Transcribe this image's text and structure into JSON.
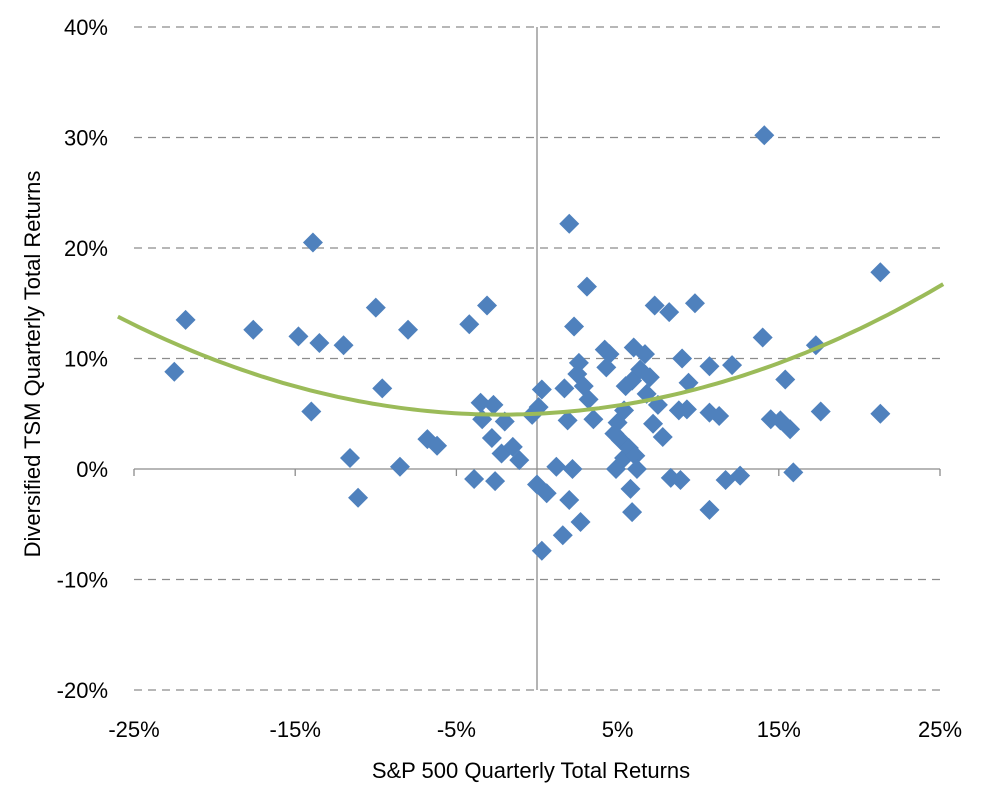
{
  "chart_data": {
    "type": "scatter",
    "xlabel": "S&P 500 Quarterly Total Returns",
    "ylabel": "Diversified TSM Quarterly Total Returns",
    "xlim": [
      -25,
      25
    ],
    "ylim": [
      -20,
      40
    ],
    "x_ticks": [
      "-25%",
      "-15%",
      "-5%",
      "5%",
      "15%",
      "25%"
    ],
    "x_tick_values": [
      -25,
      -15,
      -5,
      5,
      15,
      25
    ],
    "y_ticks": [
      "-20%",
      "-10%",
      "0%",
      "10%",
      "20%",
      "30%",
      "40%"
    ],
    "y_tick_values": [
      -20,
      -10,
      0,
      10,
      20,
      30,
      40
    ],
    "grid": "horizontal-dashed",
    "marker_color": "#4F81BD",
    "trend_color": "#9BBB59",
    "trendline": {
      "type": "polynomial",
      "coefficients": [
        5.0,
        0.07,
        0.0157
      ]
    },
    "points": [
      [
        -22.5,
        8.8
      ],
      [
        -21.8,
        13.5
      ],
      [
        -17.6,
        12.6
      ],
      [
        -14.8,
        12.0
      ],
      [
        -13.9,
        20.5
      ],
      [
        -14.0,
        5.2
      ],
      [
        -13.5,
        11.4
      ],
      [
        -12.0,
        11.2
      ],
      [
        -11.6,
        1.0
      ],
      [
        -11.1,
        -2.6
      ],
      [
        -10.0,
        14.6
      ],
      [
        -9.6,
        7.3
      ],
      [
        -8.5,
        0.2
      ],
      [
        -8.0,
        12.6
      ],
      [
        -6.8,
        2.7
      ],
      [
        -6.2,
        2.1
      ],
      [
        -4.2,
        13.1
      ],
      [
        -3.9,
        -0.9
      ],
      [
        -3.5,
        6.0
      ],
      [
        -3.4,
        4.5
      ],
      [
        -3.1,
        14.8
      ],
      [
        -2.8,
        2.8
      ],
      [
        -2.7,
        5.8
      ],
      [
        -2.6,
        -1.1
      ],
      [
        -2.2,
        1.4
      ],
      [
        -2.0,
        4.3
      ],
      [
        -1.5,
        2.0
      ],
      [
        -1.1,
        0.8
      ],
      [
        -0.3,
        4.9
      ],
      [
        0.0,
        -1.4
      ],
      [
        0.1,
        5.6
      ],
      [
        0.3,
        7.2
      ],
      [
        0.3,
        -7.4
      ],
      [
        0.6,
        -2.2
      ],
      [
        1.2,
        0.2
      ],
      [
        1.6,
        -6.0
      ],
      [
        1.7,
        7.3
      ],
      [
        1.9,
        4.4
      ],
      [
        2.0,
        -2.8
      ],
      [
        2.0,
        22.2
      ],
      [
        2.2,
        0.0
      ],
      [
        2.3,
        12.9
      ],
      [
        2.5,
        8.6
      ],
      [
        2.6,
        9.6
      ],
      [
        2.7,
        -4.8
      ],
      [
        2.9,
        7.5
      ],
      [
        3.1,
        16.5
      ],
      [
        3.2,
        6.3
      ],
      [
        3.5,
        4.5
      ],
      [
        4.2,
        10.8
      ],
      [
        4.3,
        9.2
      ],
      [
        4.5,
        10.4
      ],
      [
        4.8,
        3.2
      ],
      [
        4.9,
        0.0
      ],
      [
        5.0,
        4.2
      ],
      [
        5.2,
        2.6
      ],
      [
        5.4,
        1.0
      ],
      [
        5.4,
        5.3
      ],
      [
        5.5,
        7.5
      ],
      [
        5.7,
        1.9
      ],
      [
        5.8,
        -1.8
      ],
      [
        5.9,
        -3.9
      ],
      [
        5.9,
        8.0
      ],
      [
        6.0,
        11.0
      ],
      [
        6.1,
        1.2
      ],
      [
        6.2,
        0.0
      ],
      [
        6.4,
        9.0
      ],
      [
        6.7,
        10.4
      ],
      [
        6.8,
        6.8
      ],
      [
        7.0,
        8.3
      ],
      [
        7.2,
        4.1
      ],
      [
        7.3,
        14.8
      ],
      [
        7.5,
        5.8
      ],
      [
        7.8,
        2.9
      ],
      [
        8.2,
        14.2
      ],
      [
        8.3,
        -0.8
      ],
      [
        8.8,
        5.3
      ],
      [
        8.9,
        -1.0
      ],
      [
        9.0,
        10.0
      ],
      [
        9.3,
        5.4
      ],
      [
        9.4,
        7.8
      ],
      [
        9.8,
        15.0
      ],
      [
        10.7,
        9.3
      ],
      [
        10.7,
        5.1
      ],
      [
        10.7,
        -3.7
      ],
      [
        11.3,
        4.8
      ],
      [
        11.7,
        -1.0
      ],
      [
        12.1,
        9.4
      ],
      [
        12.6,
        -0.6
      ],
      [
        14.0,
        11.9
      ],
      [
        14.1,
        30.2
      ],
      [
        14.5,
        4.5
      ],
      [
        15.1,
        4.4
      ],
      [
        15.4,
        8.1
      ],
      [
        15.7,
        3.6
      ],
      [
        15.9,
        -0.3
      ],
      [
        17.3,
        11.2
      ],
      [
        17.6,
        5.2
      ],
      [
        21.3,
        17.8
      ],
      [
        21.3,
        5.0
      ]
    ]
  }
}
